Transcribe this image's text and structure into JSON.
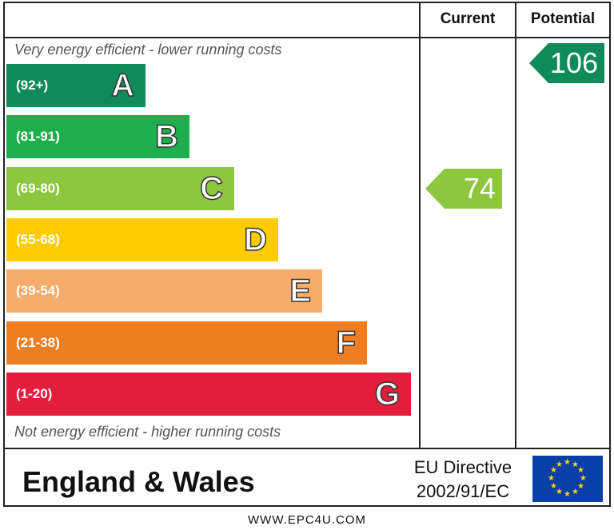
{
  "header": {
    "current_label": "Current",
    "potential_label": "Potential"
  },
  "top_note": "Very energy efficient - lower running costs",
  "bottom_note": "Not energy efficient - higher running costs",
  "chart_data": {
    "type": "bar",
    "categories": [
      "A",
      "B",
      "C",
      "D",
      "E",
      "F",
      "G"
    ],
    "ranges": [
      "(92+)",
      "(81-91)",
      "(69-80)",
      "(55-68)",
      "(39-54)",
      "(21-38)",
      "(1-20)"
    ],
    "colors": [
      "#0f8a5a",
      "#1fae4e",
      "#8dc63f",
      "#ffcc00",
      "#f7ac6b",
      "#ef7d22",
      "#e31d3c"
    ],
    "current": {
      "value": 74,
      "band": "C",
      "color": "#8dc63f"
    },
    "potential": {
      "value": 106,
      "band": "A",
      "color": "#0f8a5a"
    }
  },
  "footer": {
    "region": "England & Wales",
    "directive_line1": "EU Directive",
    "directive_line2": "2002/91/EC"
  },
  "website": "WWW.EPC4U.COM"
}
